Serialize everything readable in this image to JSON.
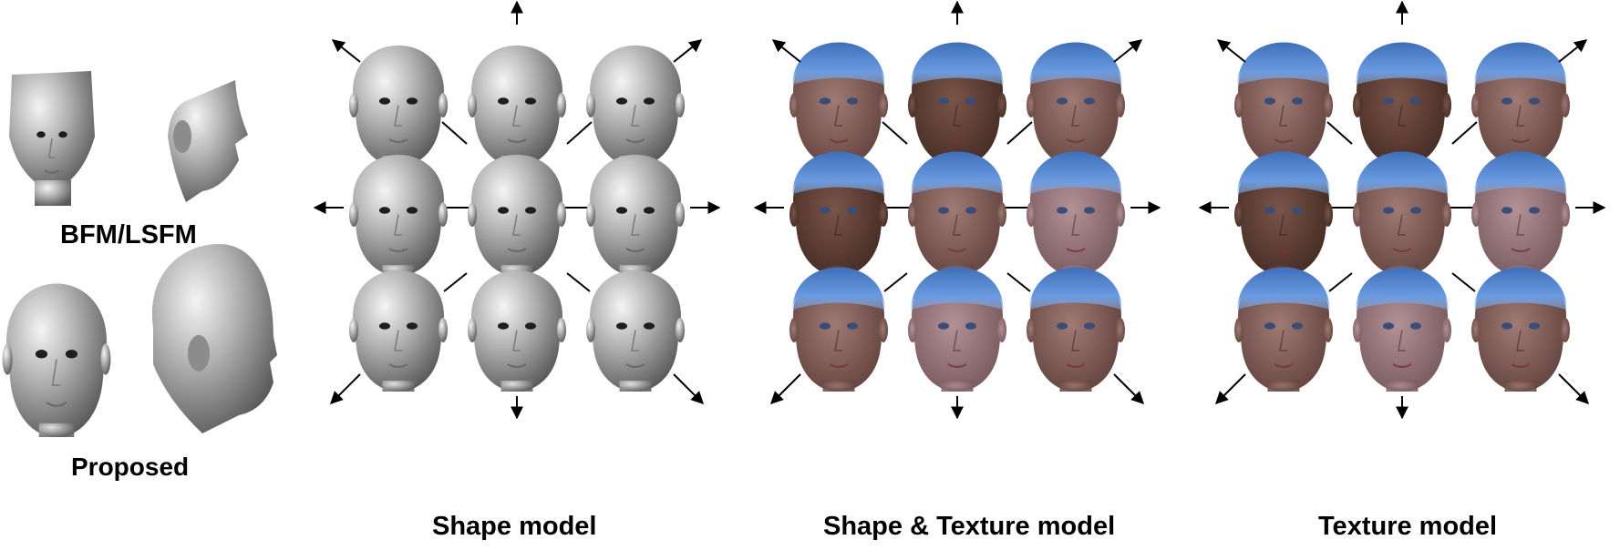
{
  "labels": {
    "bfm_lsfm": "BFM/LSFM",
    "proposed": "Proposed",
    "shape_model": "Shape model",
    "shape_texture_model": "Shape & Texture model",
    "texture_model": "Texture model"
  },
  "panels": [
    {
      "name": "shape-model",
      "style": "gray"
    },
    {
      "name": "shape-texture-model",
      "style": "textured"
    },
    {
      "name": "texture-model",
      "style": "textured-uniform"
    }
  ],
  "colors": {
    "arrow": "#000000",
    "cap_blue": "#4a7fd0",
    "gray_head": "#a9a9a9"
  }
}
